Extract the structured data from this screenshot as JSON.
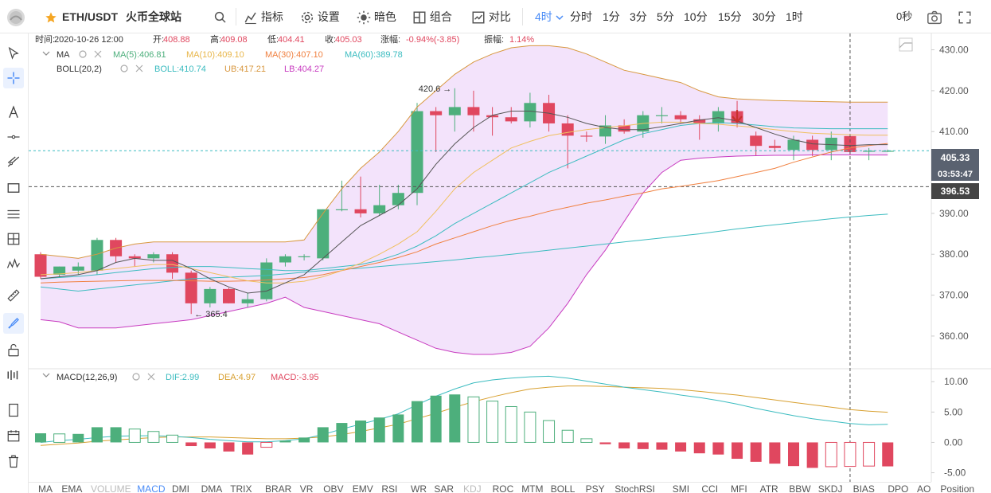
{
  "toolbar": {
    "pair": "ETH/USDT",
    "exchange": "火币全球站",
    "indicators": "指标",
    "settings": "设置",
    "theme": "暗色",
    "combo": "组合",
    "compare": "对比",
    "period": "4时",
    "intervals": [
      "分时",
      "1分",
      "3分",
      "5分",
      "10分",
      "15分",
      "30分",
      "1时"
    ],
    "countdown": "0秒"
  },
  "info": {
    "time_label": "时间:",
    "time": "2020-10-26 12:00",
    "open_label": "开:",
    "open": "408.88",
    "high_label": "高:",
    "high": "409.08",
    "low_label": "低:",
    "low": "404.41",
    "close_label": "收:",
    "close": "405.03",
    "change_label": "涨幅:",
    "change": "-0.94%(-3.85)",
    "amp_label": "振幅:",
    "amp": "1.14%"
  },
  "legend": {
    "ma_name": "MA",
    "ma5": "MA(5):406.81",
    "ma10": "MA(10):409.10",
    "ma30": "MA(30):407.10",
    "ma60": "MA(60):389.78",
    "boll_name": "BOLL(20,2)",
    "boll": "BOLL:410.74",
    "ub": "UB:417.21",
    "lb": "LB:404.27",
    "macd_name": "MACD(12,26,9)",
    "dif": "DIF:2.99",
    "dea": "DEA:4.97",
    "macd": "MACD:-3.95"
  },
  "colors": {
    "up": "#4daf7c",
    "down": "#e0475f",
    "ma5": "#555555",
    "ma10": "#f0c060",
    "ma30": "#f08040",
    "ma60": "#3cbcc0",
    "boll_mid": "#3cbcc0",
    "boll_ub": "#d89840",
    "boll_lb": "#c83cc0",
    "band": "#f3e3fb",
    "accent": "#4a8cf7"
  },
  "price_labels": {
    "current": "405.33",
    "timer": "03:53:47",
    "crosshair": "396.53"
  },
  "chart_data": {
    "type": "candlestick",
    "ylim": [
      352,
      434
    ],
    "yticks": [
      360,
      370,
      380,
      390,
      400,
      410,
      420,
      430
    ],
    "macd_ylim": [
      -6.5,
      12
    ],
    "macd_yticks": [
      "-5.00",
      "0.00",
      "5.00",
      "10.00"
    ],
    "macd_ytick_values": [
      -5,
      0,
      5,
      10
    ],
    "candles": [
      {
        "o": 380,
        "h": 380.5,
        "l": 374,
        "c": 374.5
      },
      {
        "o": 375,
        "h": 377,
        "l": 374.5,
        "c": 377
      },
      {
        "o": 376,
        "h": 378,
        "l": 375,
        "c": 377
      },
      {
        "o": 376,
        "h": 384,
        "l": 375,
        "c": 383.5
      },
      {
        "o": 383.5,
        "h": 384,
        "l": 378,
        "c": 379.5
      },
      {
        "o": 379.5,
        "h": 380,
        "l": 377,
        "c": 379
      },
      {
        "o": 379,
        "h": 380.5,
        "l": 378,
        "c": 380
      },
      {
        "o": 380,
        "h": 380.5,
        "l": 374,
        "c": 375.5
      },
      {
        "o": 375.5,
        "h": 376,
        "l": 365.4,
        "c": 368
      },
      {
        "o": 368,
        "h": 372,
        "l": 367,
        "c": 371.5
      },
      {
        "o": 371.5,
        "h": 371.8,
        "l": 368,
        "c": 368
      },
      {
        "o": 368,
        "h": 370.5,
        "l": 367,
        "c": 369
      },
      {
        "o": 369,
        "h": 379,
        "l": 368.5,
        "c": 378
      },
      {
        "o": 378,
        "h": 380,
        "l": 377,
        "c": 379.5
      },
      {
        "o": 379.5,
        "h": 380,
        "l": 378.5,
        "c": 379.5
      },
      {
        "o": 379,
        "h": 391,
        "l": 378.5,
        "c": 391
      },
      {
        "o": 391,
        "h": 398,
        "l": 390.5,
        "c": 391
      },
      {
        "o": 391,
        "h": 399,
        "l": 389,
        "c": 390
      },
      {
        "o": 390,
        "h": 397,
        "l": 389.5,
        "c": 392
      },
      {
        "o": 392,
        "h": 397,
        "l": 391,
        "c": 395
      },
      {
        "o": 395,
        "h": 417,
        "l": 392,
        "c": 415
      },
      {
        "o": 415,
        "h": 416,
        "l": 405,
        "c": 414
      },
      {
        "o": 414,
        "h": 420.6,
        "l": 410,
        "c": 416
      },
      {
        "o": 416,
        "h": 420,
        "l": 410,
        "c": 414
      },
      {
        "o": 414,
        "h": 416,
        "l": 409,
        "c": 413.5
      },
      {
        "o": 413.5,
        "h": 416,
        "l": 412,
        "c": 412.5
      },
      {
        "o": 412.5,
        "h": 419.5,
        "l": 411,
        "c": 417
      },
      {
        "o": 417,
        "h": 419,
        "l": 410,
        "c": 412
      },
      {
        "o": 412,
        "h": 414,
        "l": 401,
        "c": 409
      },
      {
        "o": 409,
        "h": 410,
        "l": 407.5,
        "c": 408.8
      },
      {
        "o": 408.8,
        "h": 414,
        "l": 407,
        "c": 411.5
      },
      {
        "o": 411.5,
        "h": 413,
        "l": 409.5,
        "c": 410
      },
      {
        "o": 410,
        "h": 415,
        "l": 408.5,
        "c": 414
      },
      {
        "o": 414,
        "h": 416,
        "l": 412,
        "c": 414
      },
      {
        "o": 414,
        "h": 415,
        "l": 412,
        "c": 413
      },
      {
        "o": 413,
        "h": 414,
        "l": 408,
        "c": 412
      },
      {
        "o": 412,
        "h": 416,
        "l": 410,
        "c": 415
      },
      {
        "o": 415,
        "h": 417.5,
        "l": 411,
        "c": 412
      },
      {
        "o": 409,
        "h": 410,
        "l": 404,
        "c": 406.5
      },
      {
        "o": 406.5,
        "h": 408,
        "l": 405,
        "c": 406
      },
      {
        "o": 405.5,
        "h": 409,
        "l": 403,
        "c": 408
      },
      {
        "o": 408,
        "h": 409,
        "l": 404,
        "c": 405.5
      },
      {
        "o": 405.5,
        "h": 410,
        "l": 403,
        "c": 408.5
      },
      {
        "o": 408.9,
        "h": 409.1,
        "l": 404.4,
        "c": 405
      },
      {
        "o": 405.3,
        "h": 406,
        "l": 403,
        "c": 405.3
      },
      {
        "o": 405.3,
        "h": 405.6,
        "l": 405,
        "c": 405.3
      }
    ],
    "ma5": [
      374,
      374.5,
      375,
      376,
      378,
      379,
      378.5,
      378.5,
      376.5,
      374,
      372,
      370.5,
      371,
      373,
      375,
      379,
      383,
      387,
      389.5,
      392,
      396,
      402,
      407,
      411,
      414,
      415,
      415,
      414.5,
      413.5,
      412,
      411,
      410.5,
      410.5,
      411.2,
      412,
      412.8,
      413.4,
      412.6,
      411,
      409.4,
      408,
      407,
      406.8,
      406.6,
      406.8,
      406.8
    ],
    "ma10": [
      375,
      375.2,
      375.5,
      376,
      376.5,
      377,
      377.5,
      377.5,
      376.5,
      375.5,
      374.5,
      373.5,
      373,
      373,
      373.4,
      374.5,
      376,
      377.8,
      380,
      382.5,
      385.5,
      390.5,
      396,
      400,
      403,
      406,
      407.6,
      409,
      409.8,
      410.5,
      411,
      411.4,
      412,
      412.3,
      412.3,
      412,
      411.8,
      411.4,
      411,
      410.5,
      410,
      409.6,
      409.4,
      409.2,
      409.1,
      409.1
    ],
    "ma30": [
      373,
      373.2,
      373.3,
      373.4,
      373.5,
      373.6,
      373.6,
      373.6,
      373.5,
      373.4,
      373.4,
      373.5,
      373.7,
      374,
      374.3,
      375,
      376,
      377,
      378,
      379.2,
      380.6,
      382.5,
      384,
      385.5,
      387,
      388.3,
      389.3,
      390.5,
      391.5,
      392.5,
      393.3,
      394.2,
      395,
      396,
      396.6,
      397.3,
      398,
      399,
      400,
      401,
      402.5,
      403.8,
      405,
      406,
      406.6,
      407.1
    ],
    "ma60": [
      372,
      371.5,
      371,
      371.5,
      372,
      372.5,
      373,
      373.5,
      374,
      374.2,
      374.4,
      374.6,
      374.8,
      375.2,
      375.6,
      376,
      376.3,
      376.6,
      377,
      377.4,
      377.8,
      378.2,
      378.6,
      379.1,
      379.5,
      380,
      380.5,
      381,
      381.5,
      382,
      382.5,
      383,
      383.5,
      384,
      384.5,
      385,
      385.6,
      386.2,
      386.7,
      387.2,
      387.7,
      388.2,
      388.7,
      389.1,
      389.5,
      389.8
    ],
    "boll_mid": [
      374,
      374.3,
      374.6,
      375,
      375.5,
      376,
      376.5,
      376.8,
      377,
      377,
      376.8,
      376.5,
      376.3,
      376,
      376,
      376.5,
      377,
      377.5,
      378.5,
      380,
      382,
      384.5,
      387.5,
      390,
      392.5,
      395,
      397.5,
      400,
      402,
      404,
      406,
      408,
      409.5,
      410.5,
      411.5,
      412,
      412.2,
      412,
      411.6,
      411.2,
      410.9,
      410.8,
      410.7,
      410.7,
      410.7,
      410.7
    ],
    "boll_ub": [
      380,
      379.5,
      379,
      380,
      381.5,
      382.5,
      383,
      383,
      383,
      383,
      383,
      383,
      383,
      383,
      383.5,
      390,
      396,
      401,
      405,
      410,
      416,
      420,
      424,
      427,
      429,
      430.5,
      431,
      431,
      430.5,
      429,
      427,
      425,
      424,
      423,
      422,
      420,
      418.5,
      418,
      417.8,
      417.6,
      417.5,
      417.4,
      417.3,
      417.2,
      417.2,
      417.2
    ],
    "boll_lb": [
      364,
      363.5,
      362,
      362,
      362,
      362.5,
      363,
      363.5,
      364,
      365,
      366,
      367,
      368,
      369.5,
      367,
      366,
      365,
      364,
      363,
      361,
      359,
      357,
      356,
      355.5,
      355.5,
      356,
      357.5,
      362,
      368,
      375,
      381,
      388,
      395,
      400,
      403,
      403.5,
      403.8,
      404,
      404.1,
      404.2,
      404.2,
      404.3,
      404.3,
      404.3,
      404.27,
      404.27
    ],
    "macd_hist": [
      1.5,
      1.4,
      1.4,
      2.5,
      2.5,
      2.2,
      1.8,
      1.2,
      -0.6,
      -1,
      -1.5,
      -2,
      -0.8,
      0.3,
      0.8,
      2.5,
      3.2,
      3.6,
      4.1,
      4.6,
      6.8,
      7.7,
      7.9,
      7.5,
      6.8,
      5.9,
      5,
      3.6,
      2,
      0.6,
      -0.3,
      -1,
      -1.1,
      -1.2,
      -1.5,
      -1.8,
      -2,
      -2.7,
      -3.2,
      -3.5,
      -3.9,
      -4.2,
      -4,
      -3.95,
      -3.9,
      -3.95
    ],
    "dif": [
      0,
      0.3,
      0.5,
      0.8,
      1,
      1.1,
      1.1,
      1,
      0.8,
      0.5,
      0.3,
      0.1,
      0.1,
      0.3,
      0.6,
      1.3,
      2.2,
      3,
      3.8,
      4.7,
      6.2,
      7.6,
      8.8,
      9.8,
      10.3,
      10.6,
      10.8,
      10.9,
      10.6,
      10.1,
      9.6,
      9.1,
      8.7,
      8.3,
      7.8,
      7.4,
      6.9,
      6.3,
      5.6,
      5,
      4.4,
      3.9,
      3.5,
      3.1,
      2.9,
      2.99
    ],
    "dea": [
      -0.5,
      -0.3,
      -0.1,
      0.2,
      0.4,
      0.6,
      0.8,
      0.9,
      0.9,
      0.9,
      0.8,
      0.7,
      0.6,
      0.6,
      0.7,
      0.9,
      1.3,
      1.8,
      2.4,
      3,
      3.9,
      4.8,
      5.8,
      6.7,
      7.5,
      8.2,
      8.8,
      9.1,
      9.3,
      9.3,
      9.2,
      9.1,
      9,
      8.9,
      8.7,
      8.4,
      8.1,
      7.8,
      7.4,
      7,
      6.6,
      6.2,
      5.8,
      5.4,
      5.15,
      4.97
    ],
    "annotations": {
      "high_label": "420.6 →",
      "high_index": 22,
      "low_label": "← 365.4",
      "low_index": 8,
      "arrow_index": 37
    }
  },
  "bottom_tabs": [
    "MA",
    "EMA",
    "VOLUME",
    "MACD",
    "DMI",
    "DMA",
    "TRIX",
    "BRAR",
    "VR",
    "OBV",
    "EMV",
    "RSI",
    "WR",
    "SAR",
    "KDJ",
    "ROC",
    "MTM",
    "BOLL",
    "PSY",
    "StochRSI",
    "SMI",
    "CCI",
    "MFI",
    "ATR",
    "BBW",
    "SKDJ",
    "BIAS",
    "DPO",
    "AO",
    "Position"
  ],
  "bottom_active": "MACD",
  "bottom_faded": [
    "VOLUME",
    "KDJ"
  ]
}
